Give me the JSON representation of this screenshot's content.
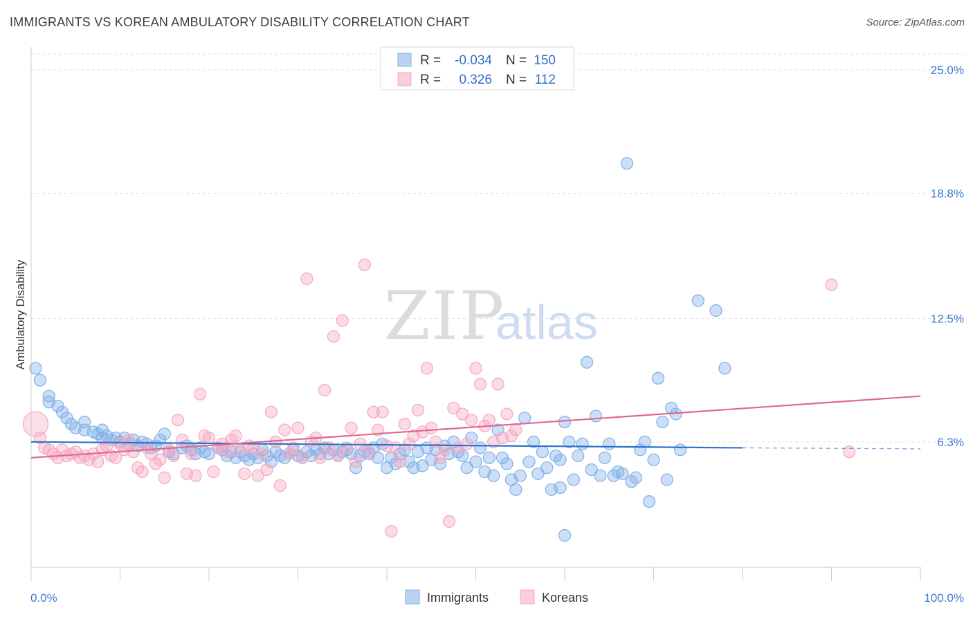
{
  "chart_data": {
    "type": "scatter",
    "title": "IMMIGRANTS VS KOREAN AMBULATORY DISABILITY CORRELATION CHART",
    "source": "Source: ZipAtlas.com",
    "ylabel": "Ambulatory Disability",
    "xlabel": "",
    "xlim": [
      0,
      100
    ],
    "ylim": [
      0,
      25.8
    ],
    "x_tick_labels": [
      "0.0%",
      "100.0%"
    ],
    "y_ticks": [
      6.3,
      12.5,
      18.8,
      25.0
    ],
    "y_tick_labels": [
      "6.3%",
      "12.5%",
      "18.8%",
      "25.0%"
    ],
    "grid": true,
    "legend_position": "top-center",
    "watermark": "ZIPatlas",
    "stats": [
      {
        "r_label": "R =",
        "r": "-0.034",
        "n_label": "N =",
        "n": "150"
      },
      {
        "r_label": "R =",
        "r": "0.326",
        "n_label": "N =",
        "n": "112"
      }
    ],
    "series": [
      {
        "name": "Immigrants",
        "color": "#7fb0e8",
        "line_color": "#2f72c9",
        "trend": {
          "x": [
            0,
            80
          ],
          "y": [
            6.3,
            6.0
          ]
        },
        "trend_extension": {
          "x": [
            80,
            100
          ],
          "y": [
            6.0,
            5.95
          ]
        },
        "points": [
          [
            0.5,
            10
          ],
          [
            1,
            9.4
          ],
          [
            2,
            8.6
          ],
          [
            2,
            8.3
          ],
          [
            3,
            8.1
          ],
          [
            3.5,
            7.8
          ],
          [
            4,
            7.5
          ],
          [
            4.5,
            7.2
          ],
          [
            5,
            7
          ],
          [
            6,
            6.9
          ],
          [
            6,
            7.3
          ],
          [
            7,
            6.8
          ],
          [
            7.5,
            6.7
          ],
          [
            8,
            6.5
          ],
          [
            8,
            6.9
          ],
          [
            8.5,
            6.6
          ],
          [
            9,
            6.4
          ],
          [
            9.5,
            6.5
          ],
          [
            10,
            6.3
          ],
          [
            10.5,
            6.5
          ],
          [
            11,
            6.2
          ],
          [
            11.5,
            6.4
          ],
          [
            12,
            6.1
          ],
          [
            12.5,
            6.3
          ],
          [
            13,
            6.2
          ],
          [
            13.5,
            6.0
          ],
          [
            14,
            6.1
          ],
          [
            14.5,
            6.4
          ],
          [
            15,
            6.7
          ],
          [
            15.5,
            5.8
          ],
          [
            16,
            5.7
          ],
          [
            17,
            6.0
          ],
          [
            17.5,
            6.1
          ],
          [
            18,
            5.9
          ],
          [
            18.5,
            5.7
          ],
          [
            19,
            6.0
          ],
          [
            19.5,
            5.8
          ],
          [
            20,
            5.7
          ],
          [
            21,
            6.0
          ],
          [
            21.5,
            5.9
          ],
          [
            22,
            5.6
          ],
          [
            22.5,
            5.8
          ],
          [
            23,
            5.5
          ],
          [
            23.5,
            5.8
          ],
          [
            24,
            5.6
          ],
          [
            24.5,
            5.4
          ],
          [
            25,
            5.7
          ],
          [
            25.5,
            5.5
          ],
          [
            26,
            5.9
          ],
          [
            26.5,
            5.6
          ],
          [
            27,
            5.3
          ],
          [
            27.5,
            5.8
          ],
          [
            28,
            5.6
          ],
          [
            28.5,
            5.5
          ],
          [
            29,
            5.7
          ],
          [
            29.5,
            5.9
          ],
          [
            30,
            5.6
          ],
          [
            30.5,
            5.5
          ],
          [
            31,
            5.8
          ],
          [
            31.5,
            5.6
          ],
          [
            32,
            5.9
          ],
          [
            32.5,
            5.7
          ],
          [
            33,
            6.0
          ],
          [
            33.5,
            5.7
          ],
          [
            34,
            5.9
          ],
          [
            34.5,
            5.6
          ],
          [
            35,
            5.8
          ],
          [
            35.5,
            5.9
          ],
          [
            36,
            5.7
          ],
          [
            36.5,
            5.0
          ],
          [
            37,
            5.6
          ],
          [
            37.5,
            5.8
          ],
          [
            38,
            5.7
          ],
          [
            38.5,
            6.0
          ],
          [
            39,
            5.5
          ],
          [
            39.5,
            6.2
          ],
          [
            40,
            5.0
          ],
          [
            40.5,
            5.5
          ],
          [
            41,
            5.2
          ],
          [
            41.5,
            5.7
          ],
          [
            42,
            5.9
          ],
          [
            42.5,
            5.3
          ],
          [
            43,
            5.0
          ],
          [
            43.5,
            5.8
          ],
          [
            44,
            5.1
          ],
          [
            44.5,
            6.0
          ],
          [
            45,
            5.4
          ],
          [
            45.5,
            5.9
          ],
          [
            46,
            5.2
          ],
          [
            46.5,
            6.1
          ],
          [
            47,
            5.7
          ],
          [
            47.5,
            6.3
          ],
          [
            48,
            5.8
          ],
          [
            48.5,
            5.6
          ],
          [
            49,
            5.0
          ],
          [
            49.5,
            6.5
          ],
          [
            50,
            5.3
          ],
          [
            50.5,
            6.0
          ],
          [
            51,
            4.8
          ],
          [
            51.5,
            5.5
          ],
          [
            52,
            4.6
          ],
          [
            52.5,
            6.9
          ],
          [
            53,
            5.5
          ],
          [
            53.5,
            5.2
          ],
          [
            54,
            4.4
          ],
          [
            54.5,
            3.9
          ],
          [
            55,
            4.6
          ],
          [
            55.5,
            7.5
          ],
          [
            56,
            5.3
          ],
          [
            56.5,
            6.3
          ],
          [
            57,
            4.7
          ],
          [
            57.5,
            5.8
          ],
          [
            58,
            5.0
          ],
          [
            58.5,
            3.9
          ],
          [
            59,
            5.6
          ],
          [
            59.5,
            5.4
          ],
          [
            60,
            7.3
          ],
          [
            60.5,
            6.3
          ],
          [
            61,
            4.4
          ],
          [
            61.5,
            5.6
          ],
          [
            62,
            6.2
          ],
          [
            62.5,
            10.3
          ],
          [
            63,
            4.9
          ],
          [
            63.5,
            7.6
          ],
          [
            64,
            4.6
          ],
          [
            64.5,
            5.5
          ],
          [
            65,
            6.2
          ],
          [
            65.5,
            4.6
          ],
          [
            66,
            4.8
          ],
          [
            66.5,
            4.7
          ],
          [
            67,
            20.3
          ],
          [
            67.5,
            4.3
          ],
          [
            68,
            4.5
          ],
          [
            68.5,
            5.9
          ],
          [
            69,
            6.3
          ],
          [
            69.5,
            3.3
          ],
          [
            70,
            5.4
          ],
          [
            70.5,
            9.5
          ],
          [
            71,
            7.3
          ],
          [
            71.5,
            4.4
          ],
          [
            72,
            8.0
          ],
          [
            72.5,
            7.7
          ],
          [
            73,
            5.9
          ],
          [
            75,
            13.4
          ],
          [
            77,
            12.9
          ],
          [
            78,
            10.0
          ],
          [
            59.5,
            4.0
          ],
          [
            60,
            1.6
          ]
        ]
      },
      {
        "name": "Koreans",
        "color": "#f4a7c0",
        "line_color": "#e0678f",
        "trend": {
          "x": [
            0,
            100
          ],
          "y": [
            5.5,
            8.6
          ]
        },
        "points": [
          [
            0.5,
            7.2
          ],
          [
            1,
            6.5
          ],
          [
            1.5,
            6.0
          ],
          [
            2,
            5.9
          ],
          [
            2.5,
            5.7
          ],
          [
            3,
            5.5
          ],
          [
            3.5,
            5.9
          ],
          [
            4,
            5.6
          ],
          [
            4.5,
            5.7
          ],
          [
            5,
            5.8
          ],
          [
            5.5,
            5.5
          ],
          [
            6,
            5.6
          ],
          [
            6.5,
            5.4
          ],
          [
            7,
            5.7
          ],
          [
            7.5,
            5.3
          ],
          [
            8,
            5.9
          ],
          [
            8.5,
            6.1
          ],
          [
            9,
            5.6
          ],
          [
            9.5,
            5.5
          ],
          [
            10,
            6.2
          ],
          [
            10.5,
            5.9
          ],
          [
            11,
            6.4
          ],
          [
            11.5,
            5.8
          ],
          [
            12,
            5.0
          ],
          [
            12.5,
            4.8
          ],
          [
            13,
            6.0
          ],
          [
            13.5,
            5.7
          ],
          [
            14,
            5.2
          ],
          [
            14.5,
            5.4
          ],
          [
            15,
            4.5
          ],
          [
            15.5,
            5.9
          ],
          [
            16,
            5.6
          ],
          [
            16.5,
            7.4
          ],
          [
            17,
            6.4
          ],
          [
            17.5,
            4.7
          ],
          [
            18,
            5.7
          ],
          [
            18.5,
            4.6
          ],
          [
            19,
            8.7
          ],
          [
            19.5,
            6.6
          ],
          [
            20,
            6.5
          ],
          [
            20.5,
            4.8
          ],
          [
            21,
            6.0
          ],
          [
            21.5,
            6.2
          ],
          [
            22,
            5.8
          ],
          [
            22.5,
            6.4
          ],
          [
            23,
            6.6
          ],
          [
            23.5,
            5.9
          ],
          [
            24,
            4.7
          ],
          [
            24.5,
            6.1
          ],
          [
            25,
            6.0
          ],
          [
            25.5,
            4.6
          ],
          [
            26,
            5.7
          ],
          [
            26.5,
            4.9
          ],
          [
            27,
            7.8
          ],
          [
            27.5,
            6.3
          ],
          [
            28,
            4.1
          ],
          [
            28.5,
            6.9
          ],
          [
            29,
            5.7
          ],
          [
            29.5,
            6.0
          ],
          [
            30,
            7.0
          ],
          [
            30.5,
            5.5
          ],
          [
            31,
            14.5
          ],
          [
            31.5,
            6.3
          ],
          [
            32,
            6.5
          ],
          [
            32.5,
            5.5
          ],
          [
            33,
            8.9
          ],
          [
            33.5,
            6.0
          ],
          [
            34,
            11.6
          ],
          [
            34.5,
            5.6
          ],
          [
            35,
            12.4
          ],
          [
            35.5,
            6.0
          ],
          [
            36,
            7.0
          ],
          [
            36.5,
            5.3
          ],
          [
            37,
            6.2
          ],
          [
            37.5,
            15.2
          ],
          [
            38,
            5.8
          ],
          [
            38.5,
            7.8
          ],
          [
            39,
            6.9
          ],
          [
            39.5,
            7.8
          ],
          [
            40,
            6.1
          ],
          [
            40.5,
            1.8
          ],
          [
            41,
            6.0
          ],
          [
            41.5,
            5.3
          ],
          [
            42,
            7.2
          ],
          [
            42.5,
            6.2
          ],
          [
            43,
            6.6
          ],
          [
            43.5,
            7.9
          ],
          [
            44,
            6.8
          ],
          [
            44.5,
            10.0
          ],
          [
            45,
            7.0
          ],
          [
            45.5,
            6.3
          ],
          [
            46,
            5.5
          ],
          [
            46.5,
            5.9
          ],
          [
            47,
            2.3
          ],
          [
            47.5,
            8.0
          ],
          [
            48,
            6.0
          ],
          [
            48.5,
            7.7
          ],
          [
            49,
            6.2
          ],
          [
            49.5,
            7.4
          ],
          [
            50,
            10.0
          ],
          [
            50.5,
            9.2
          ],
          [
            51,
            7.1
          ],
          [
            51.5,
            7.4
          ],
          [
            52,
            6.3
          ],
          [
            52.5,
            9.2
          ],
          [
            53,
            6.5
          ],
          [
            53.5,
            7.7
          ],
          [
            54,
            6.6
          ],
          [
            54.5,
            6.9
          ],
          [
            90,
            14.2
          ],
          [
            92,
            5.8
          ]
        ]
      }
    ]
  }
}
